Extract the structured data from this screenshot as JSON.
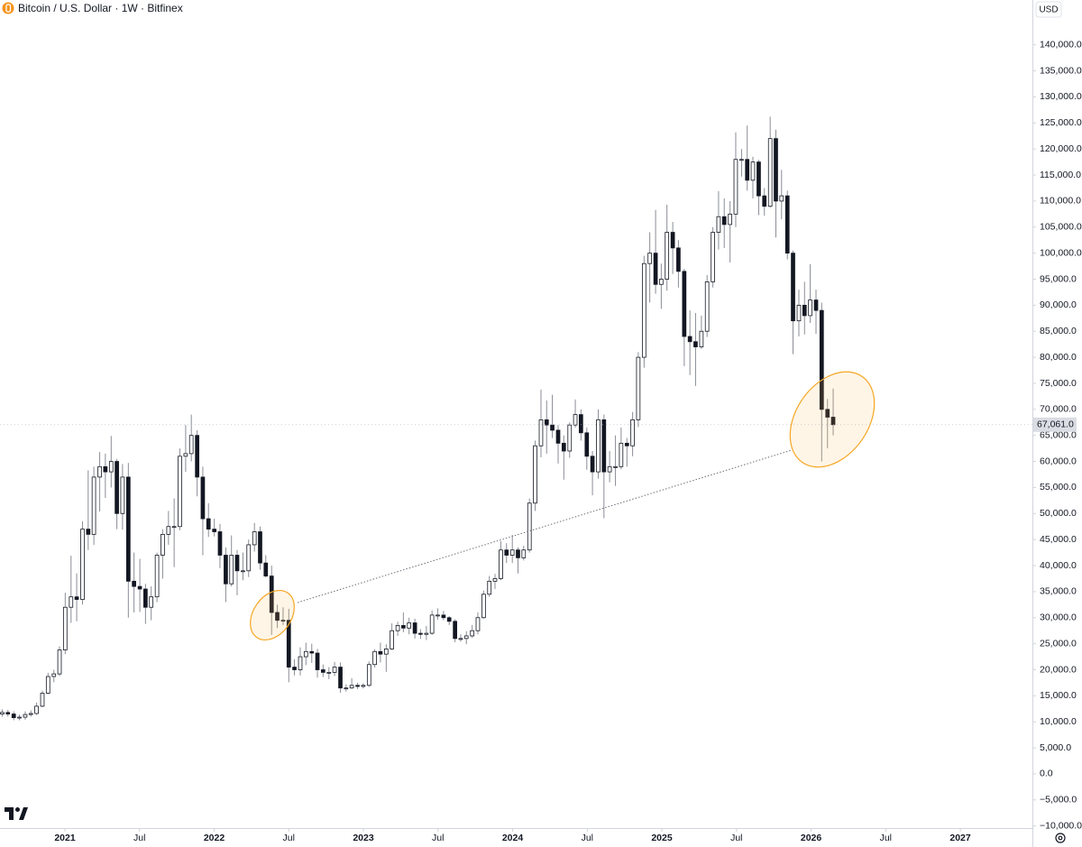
{
  "chart_data": {
    "type": "candlestick",
    "title": "Bitcoin / U.S. Dollar · 1W · Bitfinex",
    "currency": "USD",
    "last_price_label": "67,061.0",
    "up_color": "#ffffff",
    "down_color": "#131722",
    "wick_color": "#8a8d96",
    "xlim": [
      2020.565,
      2027.483
    ],
    "ylim": [
      -10400,
      144800
    ],
    "xticks": [
      2021,
      {
        "value": 2021.5,
        "label": "Jul"
      },
      2022,
      {
        "value": 2022.5,
        "label": "Jul"
      },
      2023,
      {
        "value": 2023.5,
        "label": "Jul"
      },
      2024,
      {
        "value": 2024.5,
        "label": "Jul"
      },
      2025,
      {
        "value": 2025.5,
        "label": "Jul"
      },
      2026,
      {
        "value": 2026.5,
        "label": "Jul"
      },
      2027
    ],
    "yticks": [
      {
        "value": -10000,
        "label": "−10,000.0"
      },
      {
        "value": -5000,
        "label": "−5,000.0"
      },
      {
        "value": 0,
        "label": "0.0"
      },
      {
        "value": 5000,
        "label": "5,000.0"
      },
      {
        "value": 10000,
        "label": "10,000.0"
      },
      {
        "value": 15000,
        "label": "15,000.0"
      },
      {
        "value": 20000,
        "label": "20,000.0"
      },
      {
        "value": 25000,
        "label": "25,000.0"
      },
      {
        "value": 30000,
        "label": "30,000.0"
      },
      {
        "value": 35000,
        "label": "35,000.0"
      },
      {
        "value": 40000,
        "label": "40,000.0"
      },
      {
        "value": 45000,
        "label": "45,000.0"
      },
      {
        "value": 50000,
        "label": "50,000.0"
      },
      {
        "value": 55000,
        "label": "55,000.0"
      },
      {
        "value": 60000,
        "label": "60,000.0"
      },
      {
        "value": 65000,
        "label": "65,000.0"
      },
      {
        "value": 70000,
        "label": "70,000.0"
      },
      {
        "value": 75000,
        "label": "75,000.0"
      },
      {
        "value": 80000,
        "label": "80,000.0"
      },
      {
        "value": 85000,
        "label": "85,000.0"
      },
      {
        "value": 90000,
        "label": "90,000.0"
      },
      {
        "value": 95000,
        "label": "95,000.0"
      },
      {
        "value": 100000,
        "label": "100,000.0"
      },
      {
        "value": 105000,
        "label": "105,000.0"
      },
      {
        "value": 110000,
        "label": "110,000.0"
      },
      {
        "value": 115000,
        "label": "115,000.0"
      },
      {
        "value": 120000,
        "label": "120,000.0"
      },
      {
        "value": 125000,
        "label": "125,000.0"
      },
      {
        "value": 130000,
        "label": "130,000.0"
      },
      {
        "value": 135000,
        "label": "135,000.0"
      },
      {
        "value": 140000,
        "label": "140,000.0"
      }
    ],
    "x": [
      2020.58,
      2020.618,
      2020.657,
      2020.695,
      2020.734,
      2020.772,
      2020.81,
      2020.849,
      2020.887,
      2020.926,
      2020.964,
      2021.002,
      2021.041,
      2021.079,
      2021.118,
      2021.156,
      2021.194,
      2021.233,
      2021.271,
      2021.31,
      2021.348,
      2021.386,
      2021.425,
      2021.463,
      2021.502,
      2021.54,
      2021.578,
      2021.617,
      2021.655,
      2021.694,
      2021.732,
      2021.77,
      2021.809,
      2021.847,
      2021.886,
      2021.924,
      2021.962,
      2022.001,
      2022.039,
      2022.078,
      2022.116,
      2022.154,
      2022.193,
      2022.231,
      2022.27,
      2022.308,
      2022.346,
      2022.385,
      2022.423,
      2022.462,
      2022.5,
      2022.538,
      2022.577,
      2022.615,
      2022.654,
      2022.692,
      2022.73,
      2022.769,
      2022.807,
      2022.846,
      2022.884,
      2022.922,
      2022.961,
      2022.999,
      2023.038,
      2023.076,
      2023.114,
      2023.153,
      2023.191,
      2023.23,
      2023.268,
      2023.306,
      2023.345,
      2023.383,
      2023.422,
      2023.46,
      2023.498,
      2023.537,
      2023.575,
      2023.614,
      2023.652,
      2023.69,
      2023.729,
      2023.767,
      2023.806,
      2023.844,
      2023.882,
      2023.921,
      2023.959,
      2023.998,
      2024.036,
      2024.074,
      2024.113,
      2024.151,
      2024.19,
      2024.228,
      2024.266,
      2024.305,
      2024.343,
      2024.382,
      2024.42,
      2024.458,
      2024.497,
      2024.535,
      2024.574,
      2024.612,
      2024.65,
      2024.689,
      2024.727,
      2024.766,
      2024.804,
      2024.842,
      2024.881,
      2024.919,
      2024.958,
      2024.996,
      2025.034,
      2025.073,
      2025.111,
      2025.15,
      2025.188,
      2025.226,
      2025.265,
      2025.303,
      2025.342,
      2025.38,
      2025.418,
      2025.457,
      2025.495,
      2025.534,
      2025.572,
      2025.61,
      2025.649,
      2025.687,
      2025.726,
      2025.764,
      2025.802,
      2025.841,
      2025.879,
      2025.918,
      2025.956,
      2025.994,
      2026.033,
      2026.071,
      2026.11,
      2026.148
    ],
    "open": [
      11500,
      11800,
      11500,
      10800,
      10900,
      11400,
      11600,
      13000,
      15500,
      18700,
      19200,
      23800,
      32000,
      34000,
      33500,
      47000,
      46000,
      57000,
      59000,
      58000,
      60000,
      50000,
      57000,
      37000,
      36000,
      35500,
      32000,
      34000,
      42000,
      46000,
      47500,
      47500,
      61000,
      61500,
      65000,
      57000,
      49000,
      47000,
      46500,
      42000,
      36500,
      42000,
      39000,
      39000,
      44000,
      46500,
      40500,
      38000,
      31000,
      29500,
      29500,
      20500,
      20000,
      22500,
      23500,
      23200,
      20000,
      19500,
      19500,
      20500,
      16500,
      16500,
      17000,
      16800,
      17000,
      21000,
      23500,
      23000,
      24000,
      27500,
      28500,
      28000,
      29000,
      27000,
      26800,
      27000,
      30500,
      30500,
      30000,
      29300,
      26000,
      26000,
      26500,
      27500,
      30000,
      34500,
      37000,
      37500,
      43000,
      42000,
      43000,
      41500,
      43000,
      52000,
      63000,
      68000,
      67000,
      66000,
      63500,
      62000,
      67000,
      69000,
      65500,
      61000,
      58000,
      68000,
      58000,
      59000,
      59000,
      63500,
      63000,
      68000,
      80000,
      98000,
      100000,
      94000,
      95000,
      104000,
      101000,
      96500,
      84000,
      83000,
      82000,
      85000,
      94500,
      104000,
      107000,
      105500,
      107500,
      118000,
      118000,
      114000,
      117500,
      111000,
      109000,
      122000,
      110000,
      111000,
      100000,
      87000,
      90000,
      88000,
      91000,
      89000,
      70000,
      68500
    ],
    "high": [
      12400,
      12300,
      12000,
      11400,
      12000,
      12200,
      13700,
      16000,
      19400,
      20000,
      24500,
      34800,
      41900,
      38500,
      48500,
      58300,
      59000,
      61800,
      61500,
      64900,
      60500,
      59500,
      59700,
      42500,
      41300,
      36500,
      36000,
      42500,
      47000,
      50500,
      52900,
      62500,
      67000,
      69000,
      66000,
      59000,
      52000,
      49000,
      48000,
      43500,
      45800,
      43000,
      42500,
      45000,
      48200,
      47500,
      42000,
      40000,
      32500,
      32000,
      31700,
      22000,
      24300,
      25200,
      25000,
      24000,
      21000,
      20500,
      21500,
      21400,
      17200,
      18400,
      17500,
      17400,
      21600,
      23900,
      25200,
      24900,
      28900,
      29200,
      31000,
      30000,
      29800,
      27800,
      28400,
      31400,
      31800,
      31300,
      30300,
      29700,
      26800,
      27400,
      28600,
      31000,
      35200,
      38000,
      38400,
      44700,
      44300,
      45900,
      43500,
      43800,
      52900,
      64000,
      73800,
      71700,
      72800,
      67000,
      65000,
      67500,
      71900,
      70000,
      66500,
      62000,
      70000,
      69000,
      62000,
      65000,
      66500,
      64500,
      69500,
      81000,
      99500,
      104000,
      108300,
      98000,
      109300,
      106000,
      102500,
      97000,
      89000,
      88500,
      88000,
      95800,
      105000,
      111900,
      110500,
      110000,
      123200,
      120000,
      124500,
      118500,
      117900,
      112500,
      126200,
      123700,
      116000,
      112000,
      100500,
      93000,
      94500,
      97900,
      93000,
      90500,
      72000,
      74000
    ],
    "low": [
      11000,
      11000,
      10300,
      10300,
      10400,
      11000,
      11300,
      12800,
      15300,
      17600,
      18800,
      23000,
      29000,
      29300,
      32500,
      43000,
      44000,
      50400,
      53000,
      55000,
      47000,
      46900,
      30000,
      31000,
      31100,
      28800,
      29500,
      33000,
      37500,
      44000,
      39700,
      46800,
      58000,
      60000,
      53300,
      42000,
      45500,
      45600,
      39500,
      33000,
      36000,
      34300,
      37200,
      37800,
      42700,
      39200,
      37700,
      26700,
      28000,
      28600,
      17600,
      18900,
      18900,
      20900,
      21300,
      18500,
      18600,
      18200,
      18800,
      15600,
      15800,
      16300,
      16300,
      16400,
      16700,
      20400,
      21400,
      19600,
      23800,
      26500,
      27200,
      26800,
      26000,
      25900,
      25700,
      26700,
      29600,
      29500,
      28600,
      25300,
      25400,
      24900,
      26100,
      26800,
      29800,
      34000,
      35500,
      37200,
      40500,
      40500,
      38500,
      41000,
      42500,
      50500,
      60800,
      61500,
      64500,
      59600,
      56500,
      60700,
      66500,
      64000,
      58400,
      53500,
      56700,
      49100,
      56000,
      55300,
      58500,
      59000,
      61000,
      66600,
      78000,
      90500,
      92200,
      89300,
      92800,
      96000,
      93400,
      78300,
      76600,
      74500,
      81600,
      83900,
      93400,
      100700,
      101000,
      98200,
      105000,
      114700,
      112000,
      110500,
      107300,
      107200,
      108700,
      103000,
      106500,
      98800,
      80600,
      84000,
      84400,
      86600,
      84500,
      60000,
      62500,
      65000
    ],
    "close": [
      11800,
      11500,
      10800,
      10900,
      11400,
      11600,
      13000,
      15500,
      18700,
      19200,
      23800,
      32000,
      34000,
      33500,
      47000,
      46000,
      57000,
      59000,
      58000,
      60000,
      50000,
      57000,
      37000,
      36000,
      35500,
      32000,
      34000,
      42000,
      46000,
      47500,
      47500,
      61000,
      61500,
      65000,
      57000,
      49000,
      47000,
      46500,
      42000,
      36500,
      42000,
      39000,
      39000,
      44000,
      46500,
      40500,
      38000,
      31000,
      29500,
      29500,
      20500,
      20000,
      22500,
      23500,
      23200,
      20000,
      19500,
      19500,
      20500,
      16500,
      16500,
      17000,
      16800,
      17000,
      21000,
      23500,
      23000,
      24000,
      27500,
      28500,
      28000,
      29000,
      27000,
      26800,
      27000,
      30500,
      30500,
      30000,
      29300,
      26000,
      26000,
      26500,
      27500,
      30000,
      34500,
      37000,
      37500,
      43000,
      42000,
      43000,
      41500,
      43000,
      52000,
      63000,
      68000,
      67000,
      66000,
      63500,
      62000,
      67000,
      69000,
      65500,
      61000,
      58000,
      68000,
      58000,
      59000,
      59000,
      63500,
      63000,
      68000,
      80000,
      98000,
      100000,
      94000,
      95000,
      104000,
      101000,
      96500,
      84000,
      83000,
      82000,
      85000,
      94500,
      104000,
      107000,
      105500,
      107500,
      118000,
      118000,
      114000,
      117500,
      111000,
      109000,
      122000,
      110000,
      111000,
      100000,
      87000,
      90000,
      88000,
      91000,
      89000,
      70000,
      68500,
      67061
    ]
  }
}
